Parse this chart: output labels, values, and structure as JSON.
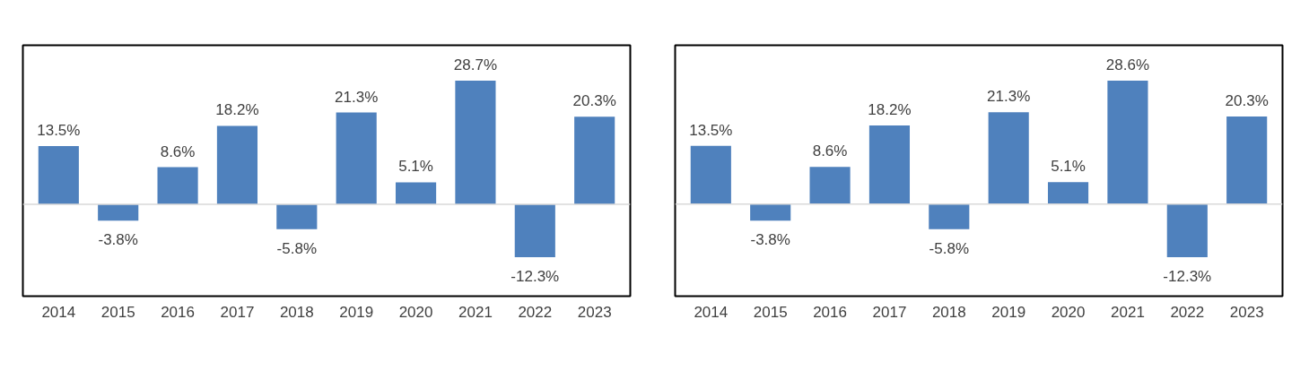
{
  "chart_data": [
    {
      "type": "bar",
      "categories": [
        "2014",
        "2015",
        "2016",
        "2017",
        "2018",
        "2019",
        "2020",
        "2021",
        "2022",
        "2023"
      ],
      "values": [
        13.5,
        -3.8,
        8.6,
        18.2,
        -5.8,
        21.3,
        5.1,
        28.7,
        -12.3,
        20.3
      ],
      "color": "#4f81bd",
      "data_labels": true,
      "value_labels": [
        "13.5%",
        "-3.8%",
        "8.6%",
        "18.2%",
        "-5.8%",
        "21.3%",
        "5.1%",
        "28.7%",
        "-12.3%",
        "20.3%"
      ],
      "grid": false
    },
    {
      "type": "bar",
      "categories": [
        "2014",
        "2015",
        "2016",
        "2017",
        "2018",
        "2019",
        "2020",
        "2021",
        "2022",
        "2023"
      ],
      "values": [
        13.5,
        -3.8,
        8.6,
        18.2,
        -5.8,
        21.3,
        5.1,
        28.6,
        -12.3,
        20.3
      ],
      "color": "#4f81bd",
      "data_labels": true,
      "value_labels": [
        "13.5%",
        "-3.8%",
        "8.6%",
        "18.2%",
        "-5.8%",
        "21.3%",
        "5.1%",
        "28.6%",
        "-12.3%",
        "20.3%"
      ],
      "grid": false
    }
  ]
}
